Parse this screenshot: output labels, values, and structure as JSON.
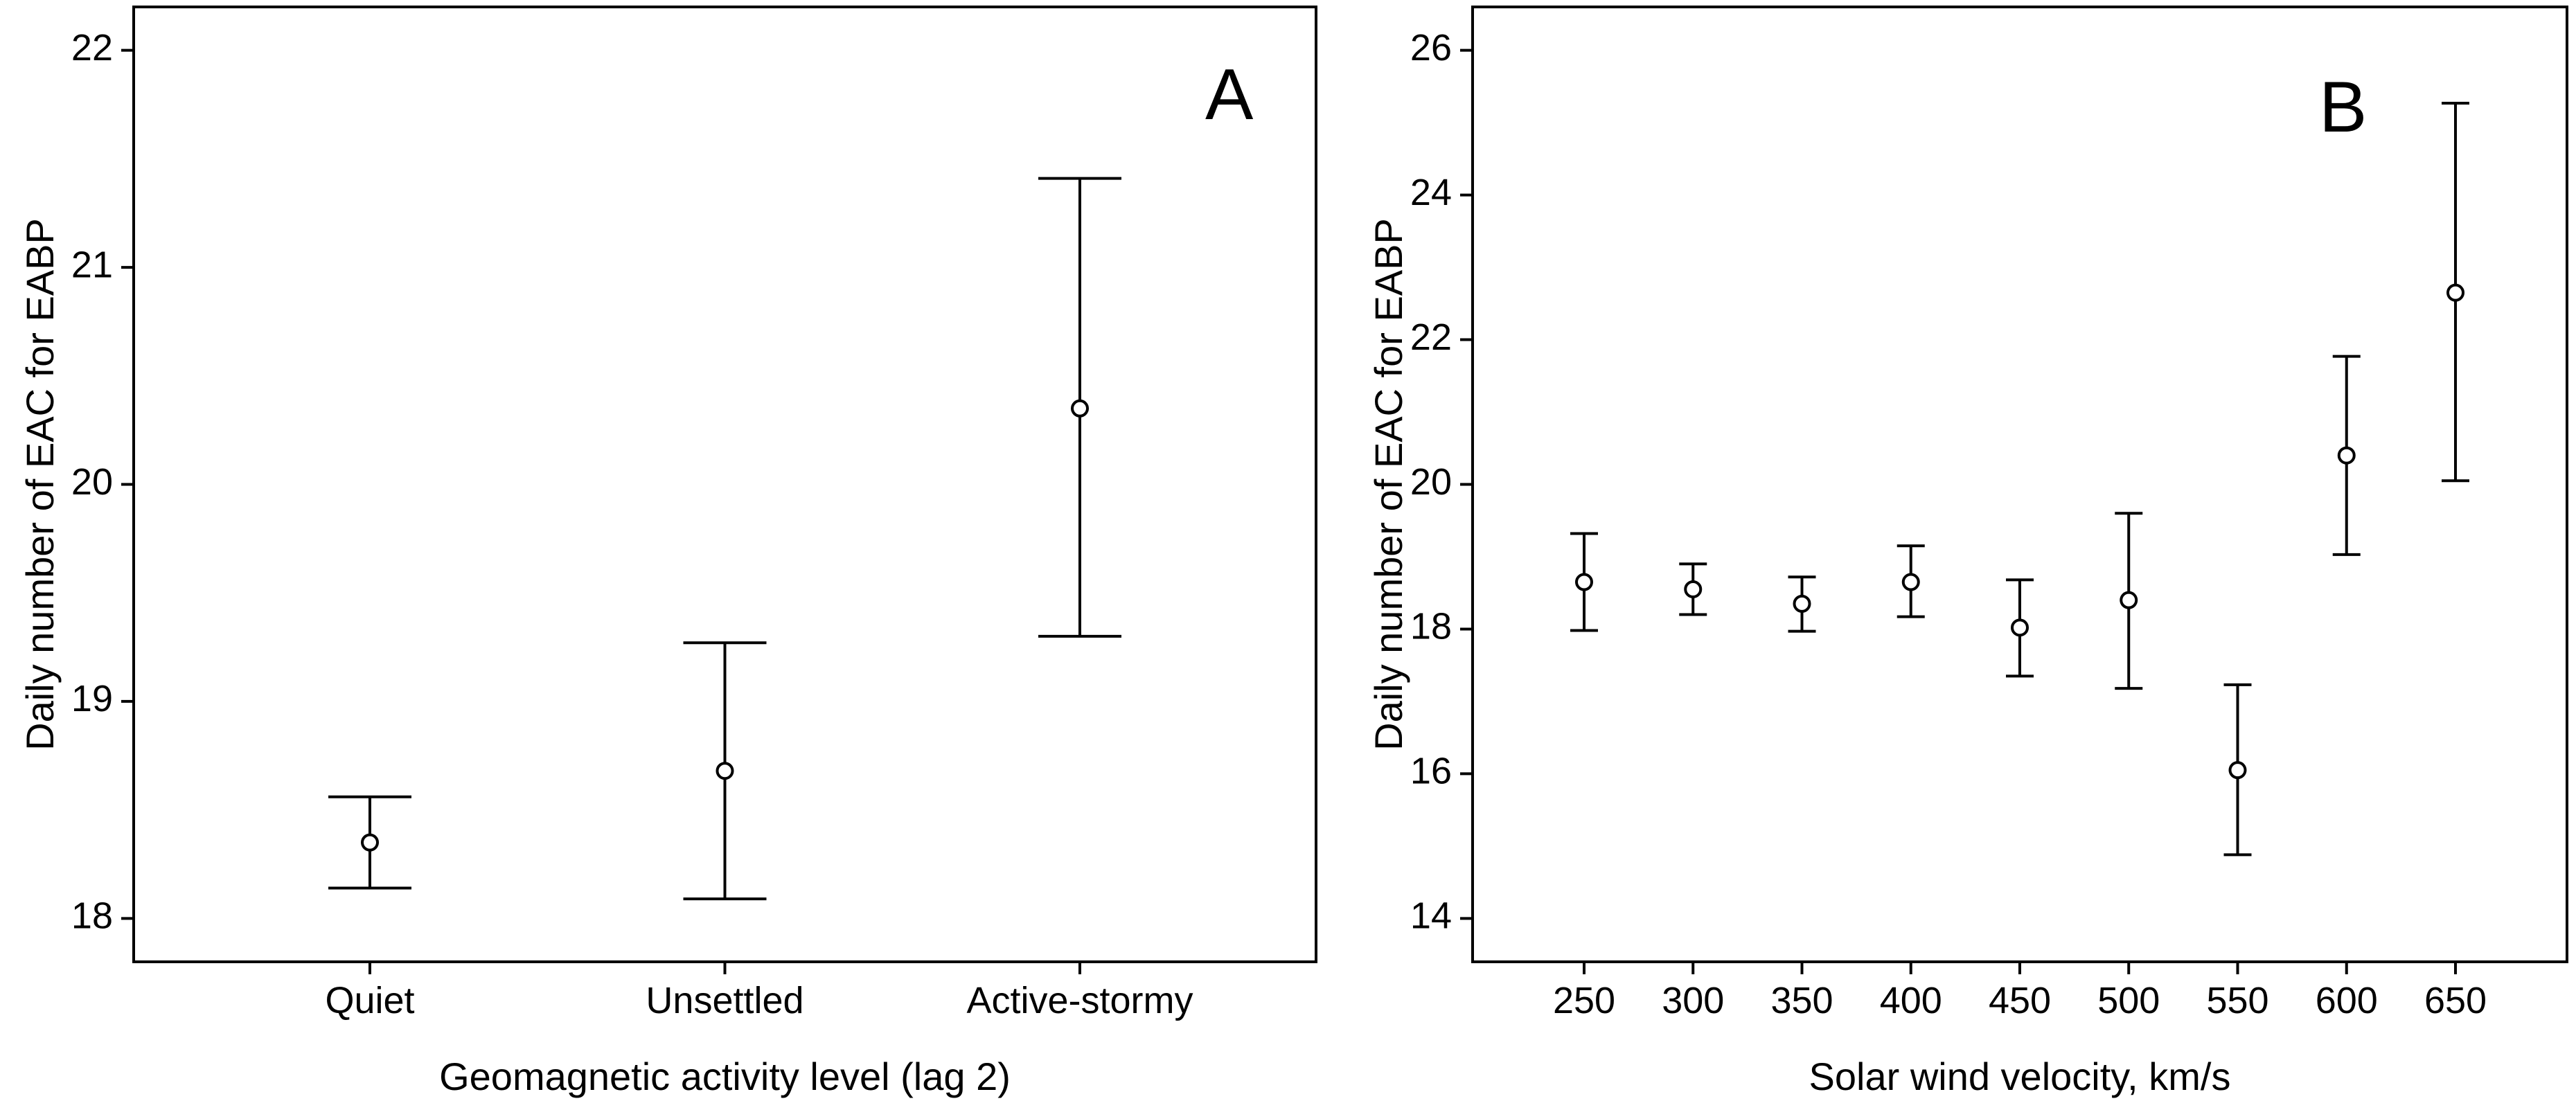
{
  "chart_data": [
    {
      "type": "scatter",
      "panel_label": "A",
      "xlabel": "Geomagnetic activity level (lag 2)",
      "ylabel": "Daily number of EAC for EABP",
      "categories": [
        "Quiet",
        "Unsettled",
        "Active-stormy"
      ],
      "values": [
        18.35,
        18.68,
        20.35
      ],
      "ci_lower": [
        18.14,
        18.09,
        19.3
      ],
      "ci_upper": [
        18.56,
        19.27,
        21.41
      ],
      "ylim": [
        17.8,
        22.2
      ],
      "yticks": [
        18,
        19,
        20,
        21,
        22
      ],
      "grid": false
    },
    {
      "type": "scatter",
      "panel_label": "B",
      "xlabel": "Solar wind velocity, km/s",
      "ylabel": "Daily number of EAC for EABP",
      "categories": [
        "250",
        "300",
        "350",
        "400",
        "450",
        "500",
        "550",
        "600",
        "650"
      ],
      "values": [
        18.65,
        18.55,
        18.35,
        18.65,
        18.02,
        18.4,
        16.05,
        20.4,
        22.65
      ],
      "ci_lower": [
        17.98,
        18.2,
        17.97,
        18.17,
        17.35,
        17.18,
        14.88,
        19.03,
        20.05
      ],
      "ci_upper": [
        19.32,
        18.9,
        18.72,
        19.15,
        18.68,
        19.6,
        17.23,
        21.77,
        25.27
      ],
      "ylim": [
        13.4,
        26.6
      ],
      "yticks": [
        14,
        16,
        18,
        20,
        22,
        24,
        26
      ],
      "grid": false
    }
  ]
}
